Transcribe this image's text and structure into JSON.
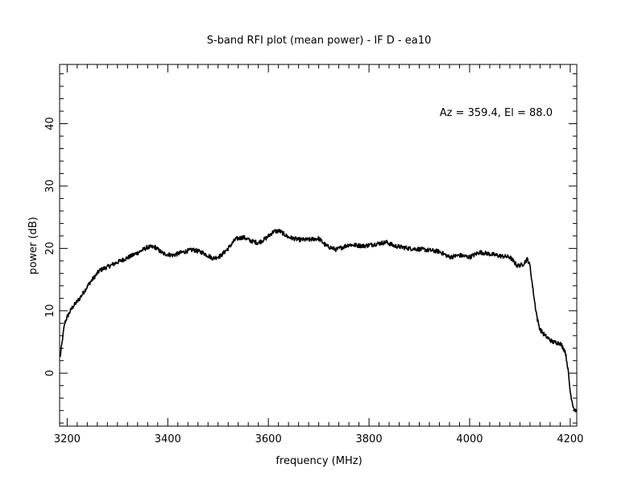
{
  "chart_data": {
    "type": "line",
    "title": "S-band RFI plot (mean power) - IF D - ea10",
    "xlabel": "frequency (MHz)",
    "ylabel": "power (dB)",
    "annotation": "Az = 359.4, El = 88.0",
    "xlim": [
      3185,
      4213
    ],
    "ylim": [
      -8.5,
      49.5
    ],
    "xticks": [
      3200,
      3400,
      3600,
      3800,
      4000,
      4200
    ],
    "xtick_labels": [
      "3200",
      "3400",
      "3600",
      "3800",
      "4000",
      "4200"
    ],
    "yticks": [
      0,
      10,
      20,
      30,
      40
    ],
    "ytick_labels": [
      "0",
      "10",
      "20",
      "30",
      "40"
    ],
    "grid": false,
    "series": [
      {
        "color": "#000000",
        "x": [
          3186,
          3190,
          3195,
          3200,
          3210,
          3225,
          3245,
          3265,
          3285,
          3300,
          3320,
          3340,
          3360,
          3375,
          3390,
          3410,
          3430,
          3450,
          3470,
          3490,
          3505,
          3520,
          3535,
          3550,
          3565,
          3580,
          3595,
          3610,
          3622,
          3640,
          3660,
          3680,
          3700,
          3715,
          3735,
          3760,
          3790,
          3820,
          3835,
          3850,
          3880,
          3910,
          3940,
          3960,
          3980,
          4000,
          4020,
          4040,
          4060,
          4080,
          4095,
          4105,
          4115,
          4120,
          4125,
          4130,
          4135,
          4140,
          4150,
          4165,
          4180,
          4190,
          4195,
          4200,
          4205,
          4208,
          4212
        ],
        "y": [
          2.5,
          5,
          8,
          9,
          10.5,
          12,
          14.5,
          16.5,
          17.2,
          17.8,
          18.5,
          19.3,
          20.2,
          20.2,
          19.2,
          18.9,
          19.4,
          19.8,
          19.3,
          18.4,
          18.8,
          20,
          21.5,
          21.8,
          21.2,
          20.9,
          21.6,
          22.7,
          22.8,
          21.8,
          21.4,
          21.4,
          21.6,
          20.4,
          19.8,
          20.6,
          20.4,
          20.8,
          21,
          20.4,
          20,
          19.8,
          19.5,
          18.6,
          18.9,
          18.6,
          19.4,
          19.1,
          18.8,
          18.6,
          17.2,
          17.4,
          18.3,
          17.2,
          14,
          11,
          8.5,
          7,
          6,
          5,
          4.8,
          3.5,
          1,
          -3,
          -5,
          -5.8,
          -6
        ]
      }
    ]
  }
}
